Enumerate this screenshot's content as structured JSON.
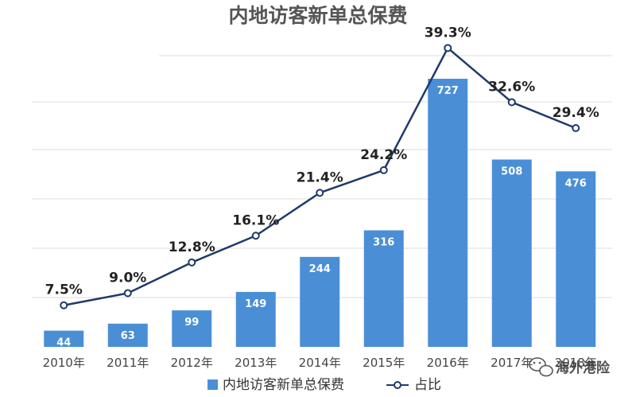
{
  "chart_data": {
    "type": "bar",
    "title": "内地访客新单总保费",
    "categories": [
      "2010年",
      "2011年",
      "2012年",
      "2013年",
      "2014年",
      "2015年",
      "2016年",
      "2017年",
      "2018年"
    ],
    "series": [
      {
        "name": "内地访客新单总保费",
        "type": "bar",
        "values": [
          44,
          63,
          99,
          149,
          244,
          316,
          727,
          508,
          476
        ],
        "color": "#4a8fd6"
      },
      {
        "name": "占比",
        "type": "line",
        "values": [
          7.5,
          9.0,
          12.8,
          16.1,
          21.4,
          24.2,
          39.3,
          32.6,
          29.4
        ],
        "labels": [
          "7.5%",
          "9.0%",
          "12.8%",
          "16.1%",
          "21.4%",
          "24.2%",
          "39.3%",
          "32.6%",
          "29.4%"
        ],
        "unit": "%",
        "color": "#1f3a6b"
      }
    ],
    "legend": {
      "position": "bottom"
    },
    "grid": true
  },
  "watermark": {
    "text": "海外港险",
    "icon": "wechat-icon"
  }
}
